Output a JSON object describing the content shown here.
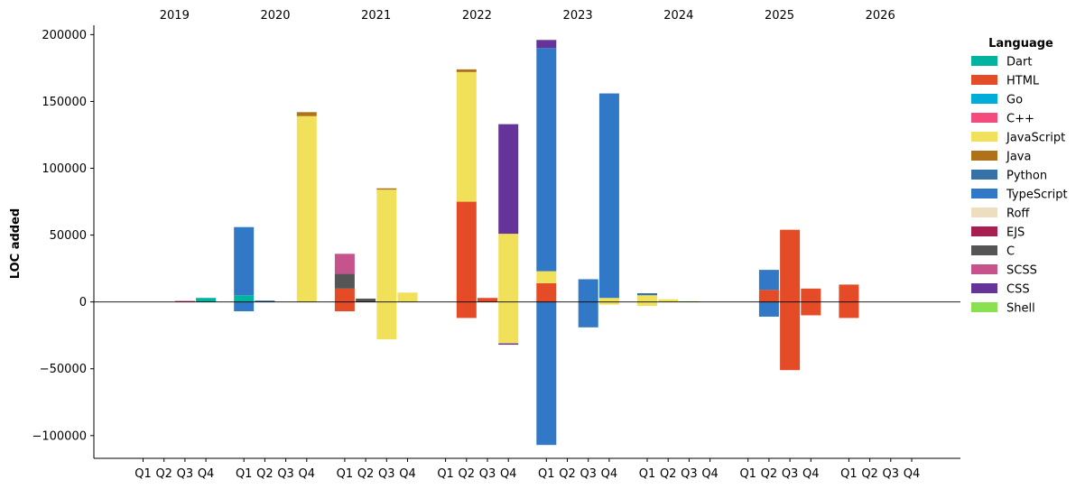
{
  "chart_data": {
    "type": "bar",
    "stacked": true,
    "title": "",
    "xlabel": "",
    "ylabel": "LOC added",
    "ylim": [
      -117000,
      207000
    ],
    "y_ticks": [
      -100000,
      -50000,
      0,
      50000,
      100000,
      150000,
      200000
    ],
    "y_tick_labels": [
      "−100000",
      "−50000",
      "0",
      "50000",
      "100000",
      "150000",
      "200000"
    ],
    "quarters": [
      "Q1",
      "Q2",
      "Q3",
      "Q4"
    ],
    "years": [
      "2019",
      "2020",
      "2021",
      "2022",
      "2023",
      "2024",
      "2025",
      "2026"
    ],
    "legend": {
      "title": "Language",
      "position": "top-right outside"
    },
    "series": [
      {
        "name": "Dart",
        "color": "#00b4a0",
        "points": [
          {
            "year": "2019",
            "q": "Q4",
            "pos": 3000,
            "neg": 0
          },
          {
            "year": "2020",
            "q": "Q1",
            "pos": 5000,
            "neg": 0
          }
        ]
      },
      {
        "name": "HTML",
        "color": "#e34c26",
        "points": [
          {
            "year": "2021",
            "q": "Q1",
            "pos": 10000,
            "neg": -7000
          },
          {
            "year": "2022",
            "q": "Q2",
            "pos": 75000,
            "neg": -12000
          },
          {
            "year": "2022",
            "q": "Q3",
            "pos": 3000,
            "neg": 0
          },
          {
            "year": "2023",
            "q": "Q1",
            "pos": 14000,
            "neg": 0
          },
          {
            "year": "2025",
            "q": "Q2",
            "pos": 9000,
            "neg": 0
          },
          {
            "year": "2025",
            "q": "Q3",
            "pos": 54000,
            "neg": -51000
          },
          {
            "year": "2025",
            "q": "Q4",
            "pos": 10000,
            "neg": -10000
          },
          {
            "year": "2026",
            "q": "Q1",
            "pos": 13000,
            "neg": -12000
          }
        ]
      },
      {
        "name": "Go",
        "color": "#00add8",
        "points": []
      },
      {
        "name": "C++",
        "color": "#f34b7d",
        "points": [
          {
            "year": "2019",
            "q": "Q3",
            "pos": 800,
            "neg": 0
          }
        ]
      },
      {
        "name": "JavaScript",
        "color": "#f1e05a",
        "points": [
          {
            "year": "2020",
            "q": "Q4",
            "pos": 139000,
            "neg": 0
          },
          {
            "year": "2021",
            "q": "Q3",
            "pos": 84000,
            "neg": -28000
          },
          {
            "year": "2021",
            "q": "Q4",
            "pos": 7000,
            "neg": 0
          },
          {
            "year": "2022",
            "q": "Q2",
            "pos": 97000,
            "neg": 0
          },
          {
            "year": "2022",
            "q": "Q4",
            "pos": 51000,
            "neg": -31000
          },
          {
            "year": "2023",
            "q": "Q1",
            "pos": 9000,
            "neg": 0
          },
          {
            "year": "2023",
            "q": "Q4",
            "pos": 3000,
            "neg": -2000
          },
          {
            "year": "2024",
            "q": "Q1",
            "pos": 5000,
            "neg": -3000
          },
          {
            "year": "2024",
            "q": "Q2",
            "pos": 2000,
            "neg": 0
          }
        ]
      },
      {
        "name": "Java",
        "color": "#b07219",
        "points": [
          {
            "year": "2020",
            "q": "Q4",
            "pos": 3000,
            "neg": 0
          },
          {
            "year": "2021",
            "q": "Q3",
            "pos": 1000,
            "neg": 0
          },
          {
            "year": "2022",
            "q": "Q2",
            "pos": 2000,
            "neg": 0
          }
        ]
      },
      {
        "name": "Python",
        "color": "#3572a5",
        "points": [
          {
            "year": "2020",
            "q": "Q2",
            "pos": 1000,
            "neg": 0
          },
          {
            "year": "2024",
            "q": "Q1",
            "pos": 1500,
            "neg": 0
          }
        ]
      },
      {
        "name": "TypeScript",
        "color": "#3178c6",
        "points": [
          {
            "year": "2020",
            "q": "Q1",
            "pos": 51000,
            "neg": -7000
          },
          {
            "year": "2023",
            "q": "Q1",
            "pos": 167000,
            "neg": -107000
          },
          {
            "year": "2023",
            "q": "Q3",
            "pos": 17000,
            "neg": -19000
          },
          {
            "year": "2023",
            "q": "Q4",
            "pos": 153000,
            "neg": 0
          },
          {
            "year": "2025",
            "q": "Q2",
            "pos": 15000,
            "neg": -11000
          }
        ]
      },
      {
        "name": "Roff",
        "color": "#ecdebe",
        "points": []
      },
      {
        "name": "EJS",
        "color": "#a91e50",
        "points": []
      },
      {
        "name": "C",
        "color": "#555555",
        "points": [
          {
            "year": "2021",
            "q": "Q1",
            "pos": 11000,
            "neg": 0
          },
          {
            "year": "2021",
            "q": "Q2",
            "pos": 2500,
            "neg": 0
          }
        ]
      },
      {
        "name": "SCSS",
        "color": "#c6538c",
        "points": [
          {
            "year": "2021",
            "q": "Q1",
            "pos": 15000,
            "neg": 0
          }
        ]
      },
      {
        "name": "CSS",
        "color": "#663399",
        "points": [
          {
            "year": "2022",
            "q": "Q4",
            "pos": 82000,
            "neg": -1000
          },
          {
            "year": "2023",
            "q": "Q1",
            "pos": 6000,
            "neg": 0
          }
        ]
      },
      {
        "name": "Shell",
        "color": "#89e051",
        "points": [
          {
            "year": "2024",
            "q": "Q3",
            "pos": 500,
            "neg": 0
          }
        ]
      }
    ]
  }
}
